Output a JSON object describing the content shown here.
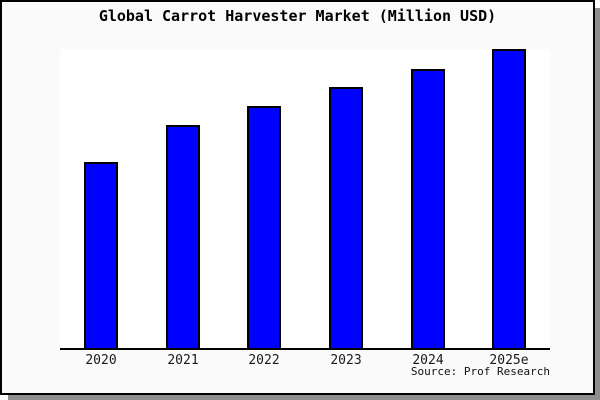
{
  "title": "Global Carrot Harvester Market (Million USD)",
  "source": "Source: Prof Research",
  "colors": {
    "bar_fill": "#0000ff",
    "bar_edge": "#000000",
    "figure_bg": "#fafafa",
    "plot_bg": "#ffffff",
    "frame": "#000000",
    "shadow": "#8f8f8f",
    "text": "#000000"
  },
  "chart_data": {
    "type": "bar",
    "title": "Global Carrot Harvester Market (Million USD)",
    "categories": [
      "2020",
      "2021",
      "2022",
      "2023",
      "2024",
      "2025e"
    ],
    "values": [
      62.2,
      74.6,
      80.9,
      87.3,
      93.3,
      100
    ],
    "xlabel": "",
    "ylabel": "",
    "ylim": [
      0,
      100
    ],
    "units": "relative scale (no y-axis tick labels shown in figure)",
    "grid": false,
    "legend": false,
    "y_axis_visible": false,
    "bar_width_fraction": 0.42
  }
}
